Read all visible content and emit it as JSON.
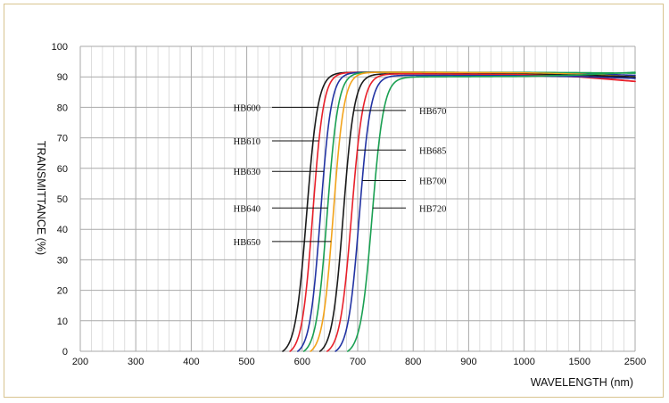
{
  "chart_data": {
    "type": "line",
    "xlabel": "WAVELENGTH (nm)",
    "ylabel": "TRANSMITTANCE (%)",
    "x_ticks": [
      "200",
      "300",
      "400",
      "500",
      "600",
      "700",
      "800",
      "900",
      "1000",
      "1500",
      "2500"
    ],
    "y_ticks": [
      "0",
      "10",
      "20",
      "30",
      "40",
      "50",
      "60",
      "70",
      "80",
      "90",
      "100"
    ],
    "ylim": [
      0,
      100
    ],
    "grid": true,
    "series": [
      {
        "name": "HB600",
        "color": "#1a1a1a",
        "start_nm": 565,
        "rise_nm": 608,
        "plateau": 91.5,
        "end_value": 89.5,
        "label_at_y": 80,
        "label_side": "left"
      },
      {
        "name": "HB610",
        "color": "#e8202a",
        "start_nm": 578,
        "rise_nm": 619,
        "plateau": 91.5,
        "end_value": 88.5,
        "label_at_y": 69,
        "label_side": "left"
      },
      {
        "name": "HB630",
        "color": "#2233a3",
        "start_nm": 592,
        "rise_nm": 633,
        "plateau": 91.5,
        "end_value": 90.5,
        "label_at_y": 59,
        "label_side": "left"
      },
      {
        "name": "HB640",
        "color": "#1aa052",
        "start_nm": 603,
        "rise_nm": 645,
        "plateau": 91.5,
        "end_value": 91.2,
        "label_at_y": 47,
        "label_side": "left"
      },
      {
        "name": "HB650",
        "color": "#f2a31b",
        "start_nm": 615,
        "rise_nm": 656,
        "plateau": 91.5,
        "end_value": 90.0,
        "label_at_y": 36,
        "label_side": "left"
      },
      {
        "name": "HB670",
        "color": "#1a1a1a",
        "start_nm": 632,
        "rise_nm": 674,
        "plateau": 91.0,
        "end_value": 90.0,
        "label_at_y": 79,
        "label_side": "right"
      },
      {
        "name": "HB685",
        "color": "#e8202a",
        "start_nm": 645,
        "rise_nm": 689,
        "plateau": 91.0,
        "end_value": 88.5,
        "label_at_y": 66,
        "label_side": "right"
      },
      {
        "name": "HB700",
        "color": "#2233a3",
        "start_nm": 660,
        "rise_nm": 703,
        "plateau": 90.5,
        "end_value": 89.5,
        "label_at_y": 56,
        "label_side": "right"
      },
      {
        "name": "HB720",
        "color": "#1aa052",
        "start_nm": 682,
        "rise_nm": 726,
        "plateau": 90.0,
        "end_value": 91.5,
        "label_at_y": 47,
        "label_side": "right"
      }
    ]
  }
}
